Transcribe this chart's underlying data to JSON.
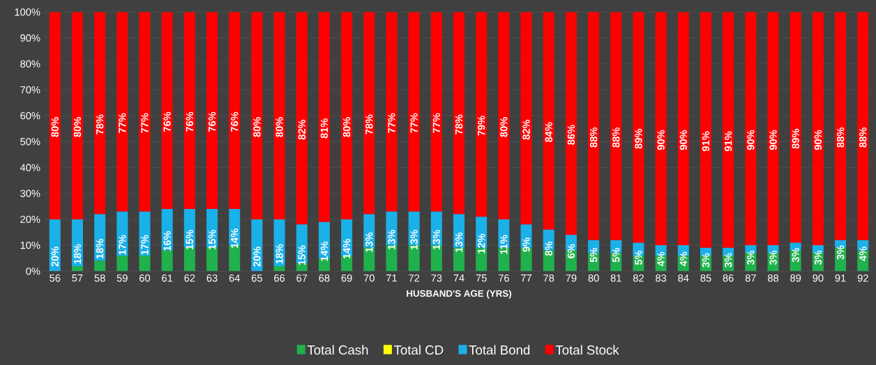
{
  "chart_data": {
    "type": "bar",
    "stacked": true,
    "xlabel": "HUSBAND'S AGE (YRS)",
    "categories": [
      "56",
      "57",
      "58",
      "59",
      "60",
      "61",
      "62",
      "63",
      "64",
      "65",
      "66",
      "67",
      "68",
      "69",
      "70",
      "71",
      "72",
      "73",
      "74",
      "75",
      "76",
      "77",
      "78",
      "79",
      "80",
      "81",
      "82",
      "83",
      "84",
      "85",
      "86",
      "87",
      "88",
      "89",
      "90",
      "91",
      "92"
    ],
    "series": [
      {
        "name": "Total Cash",
        "color": "#1fb14c",
        "values": [
          0,
          2,
          4,
          6,
          6,
          8,
          9,
          9,
          10,
          0,
          2,
          3,
          5,
          6,
          9,
          10,
          10,
          10,
          9,
          9,
          9,
          9,
          8,
          8,
          7,
          7,
          6,
          6,
          6,
          6,
          6,
          7,
          7,
          8,
          7,
          9,
          8
        ]
      },
      {
        "name": "Total CD",
        "color": "#ffff00",
        "values": [
          0,
          0,
          0,
          0,
          0,
          0,
          0,
          0,
          0,
          0,
          0,
          0,
          0,
          0,
          0,
          0,
          0,
          0,
          0,
          0,
          0,
          0,
          0,
          0,
          0,
          0,
          0,
          0,
          0,
          0,
          0,
          0,
          0,
          0,
          0,
          0,
          0
        ]
      },
      {
        "name": "Total Bond",
        "color": "#1ab0e8",
        "values": [
          20,
          18,
          18,
          17,
          17,
          16,
          15,
          15,
          14,
          20,
          18,
          15,
          14,
          14,
          13,
          13,
          13,
          13,
          13,
          12,
          11,
          9,
          8,
          6,
          5,
          5,
          5,
          4,
          4,
          3,
          3,
          3,
          3,
          3,
          3,
          3,
          4
        ],
        "value_labels": [
          "20%",
          "18%",
          "18%",
          "17%",
          "17%",
          "16%",
          "15%",
          "15%",
          "14%",
          "20%",
          "18%",
          "15%",
          "14%",
          "14%",
          "13%",
          "13%",
          "13%",
          "13%",
          "13%",
          "12%",
          "11%",
          "9%",
          "8%",
          "6%",
          "5%",
          "5%",
          "5%",
          "4%",
          "4%",
          "3%",
          "3%",
          "3%",
          "3%",
          "3%",
          "3%",
          "3%",
          "4%"
        ]
      },
      {
        "name": "Total Stock",
        "color": "#ff0000",
        "values": [
          80,
          80,
          78,
          77,
          77,
          76,
          76,
          76,
          76,
          80,
          80,
          82,
          81,
          80,
          78,
          77,
          77,
          77,
          78,
          79,
          80,
          82,
          84,
          86,
          88,
          88,
          89,
          90,
          90,
          91,
          91,
          90,
          90,
          89,
          90,
          88,
          88
        ],
        "value_labels": [
          "80%",
          "80%",
          "78%",
          "77%",
          "77%",
          "76%",
          "76%",
          "76%",
          "76%",
          "80%",
          "80%",
          "82%",
          "81%",
          "80%",
          "78%",
          "77%",
          "77%",
          "77%",
          "78%",
          "79%",
          "80%",
          "82%",
          "84%",
          "86%",
          "88%",
          "88%",
          "89%",
          "90%",
          "90%",
          "91%",
          "91%",
          "90%",
          "90%",
          "89%",
          "90%",
          "88%",
          "88%"
        ]
      }
    ],
    "ylim": [
      0,
      100
    ],
    "yticks": [
      {
        "value": 0,
        "label": "0%"
      },
      {
        "value": 10,
        "label": "10%"
      },
      {
        "value": 20,
        "label": "20%"
      },
      {
        "value": 30,
        "label": "30%"
      },
      {
        "value": 40,
        "label": "40%"
      },
      {
        "value": 50,
        "label": "50%"
      },
      {
        "value": 60,
        "label": "60%"
      },
      {
        "value": 70,
        "label": "70%"
      },
      {
        "value": 80,
        "label": "80%"
      },
      {
        "value": 90,
        "label": "90%"
      },
      {
        "value": 100,
        "label": "100%"
      }
    ],
    "grid": "y",
    "legend": "bottom"
  }
}
